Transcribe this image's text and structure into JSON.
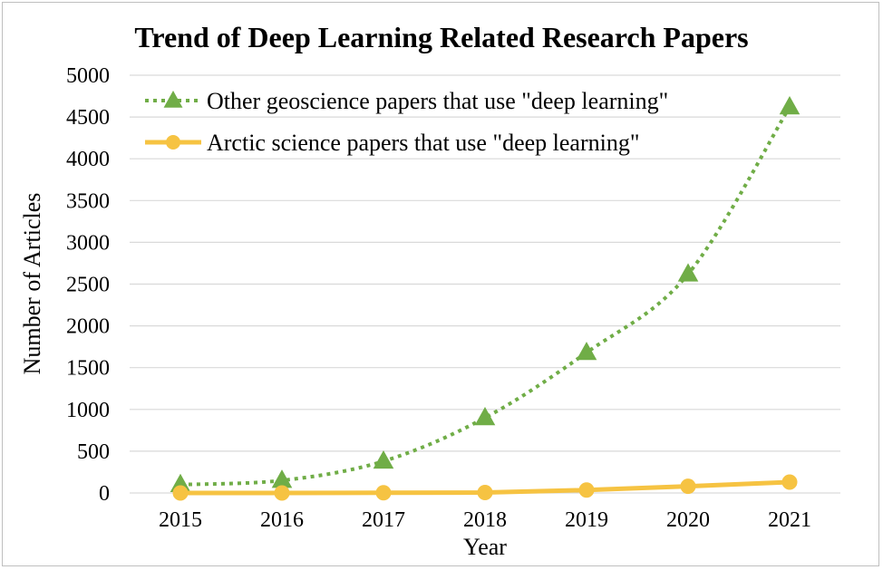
{
  "chart_data": {
    "type": "line",
    "title": "Trend of Deep Learning Related Research Papers",
    "xlabel": "Year",
    "ylabel": "Number of Articles",
    "categories": [
      "2015",
      "2016",
      "2017",
      "2018",
      "2019",
      "2020",
      "2021"
    ],
    "ylim": [
      0,
      5000
    ],
    "yticks": [
      0,
      500,
      1000,
      1500,
      2000,
      2500,
      3000,
      3500,
      4000,
      4500,
      5000
    ],
    "grid": true,
    "legend_position": "top-left",
    "series": [
      {
        "name": "Other geoscience papers that use \"deep learning\"",
        "values": [
          100,
          150,
          380,
          900,
          1680,
          2620,
          4620
        ],
        "color": "#70ad47",
        "line_style": "dotted",
        "marker": "triangle"
      },
      {
        "name": "Arctic science papers that use \"deep learning\"",
        "values": [
          0,
          0,
          3,
          5,
          35,
          80,
          130
        ],
        "color": "#f6c342",
        "line_style": "solid",
        "marker": "circle"
      }
    ]
  }
}
